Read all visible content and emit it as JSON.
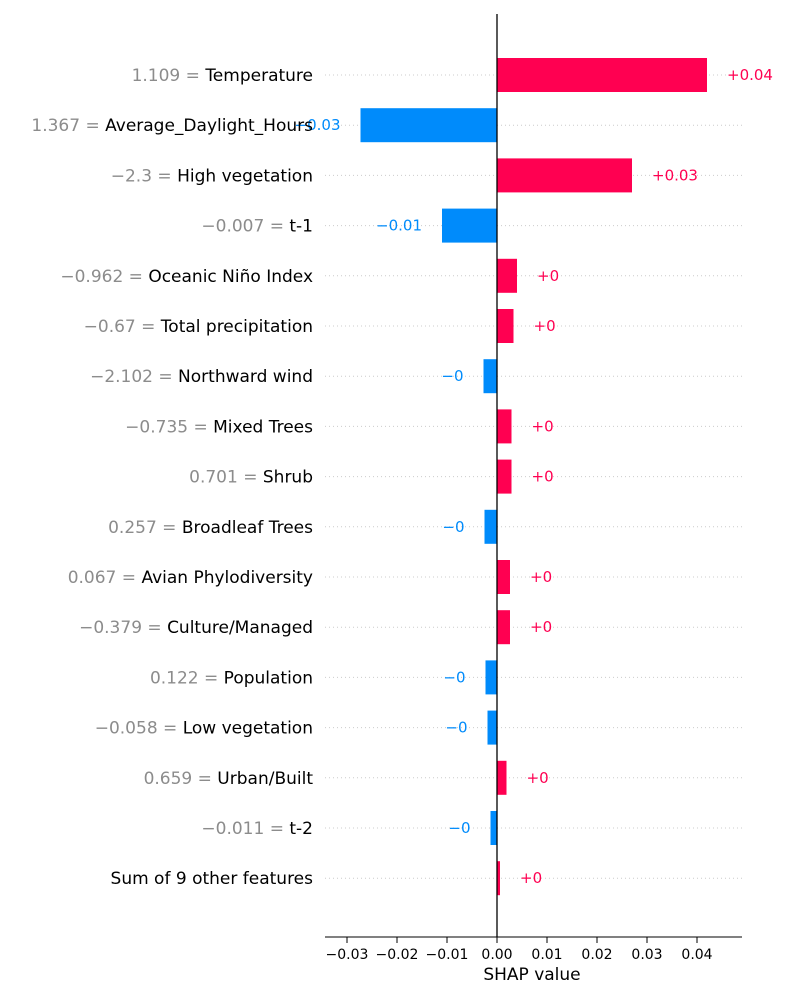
{
  "chart_data": {
    "type": "bar",
    "orientation": "horizontal",
    "xlabel": "SHAP value",
    "xlim": [
      -0.0345,
      0.049
    ],
    "x_ticks": [
      -0.03,
      -0.02,
      -0.01,
      0.0,
      0.01,
      0.02,
      0.03,
      0.04
    ],
    "x_tick_labels": [
      "−0.03",
      "−0.02",
      "−0.01",
      "0.00",
      "0.01",
      "0.02",
      "0.03",
      "0.04"
    ],
    "grid": "dotted horizontal lines per feature",
    "colors": {
      "positive": "#ff0051",
      "negative": "#008bfb",
      "feature_value": "#8c8c8c",
      "zero_line": "#000000"
    },
    "features": [
      {
        "value_text": "1.109",
        "name": "Temperature",
        "shap": 0.042,
        "label": "+0.04"
      },
      {
        "value_text": "1.367",
        "name": "Average_Daylight_Hours",
        "shap": -0.0273,
        "label": "−0.03"
      },
      {
        "value_text": "−2.3",
        "name": "High vegetation",
        "shap": 0.027,
        "label": "+0.03"
      },
      {
        "value_text": "−0.007",
        "name": "t-1",
        "shap": -0.011,
        "label": "−0.01"
      },
      {
        "value_text": "−0.962",
        "name": "Oceanic Niño Index",
        "shap": 0.004,
        "label": "+0"
      },
      {
        "value_text": "−0.67",
        "name": "Total precipitation",
        "shap": 0.0033,
        "label": "+0"
      },
      {
        "value_text": "−2.102",
        "name": "Northward wind",
        "shap": -0.0027,
        "label": "−0"
      },
      {
        "value_text": "−0.735",
        "name": "Mixed Trees",
        "shap": 0.0029,
        "label": "+0"
      },
      {
        "value_text": "0.701",
        "name": "Shrub",
        "shap": 0.0029,
        "label": "+0"
      },
      {
        "value_text": "0.257",
        "name": "Broadleaf Trees",
        "shap": -0.0025,
        "label": "−0"
      },
      {
        "value_text": "0.067",
        "name": "Avian Phylodiversity",
        "shap": 0.0026,
        "label": "+0"
      },
      {
        "value_text": "−0.379",
        "name": "Culture/Managed",
        "shap": 0.0026,
        "label": "+0"
      },
      {
        "value_text": "0.122",
        "name": "Population",
        "shap": -0.0023,
        "label": "−0"
      },
      {
        "value_text": "−0.058",
        "name": "Low vegetation",
        "shap": -0.0019,
        "label": "−0"
      },
      {
        "value_text": "0.659",
        "name": "Urban/Built",
        "shap": 0.0019,
        "label": "+0"
      },
      {
        "value_text": "−0.011",
        "name": "t-2",
        "shap": -0.0013,
        "label": "−0"
      },
      {
        "value_text": "",
        "name": "Sum of 9 other features",
        "shap": 0.0006,
        "label": "+0"
      }
    ]
  }
}
